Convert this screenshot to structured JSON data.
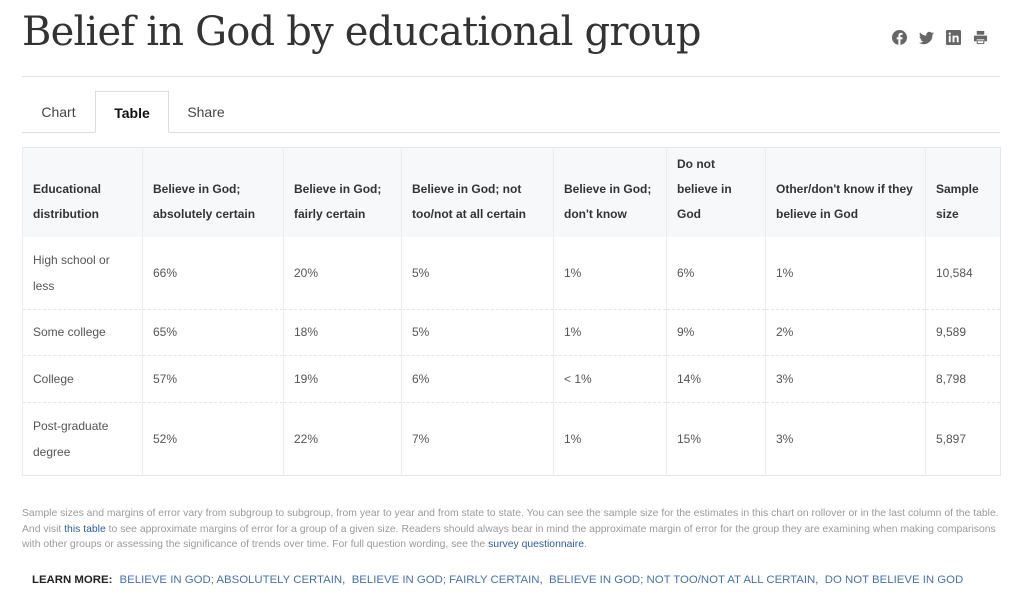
{
  "header": {
    "title": "Belief in God by educational group",
    "share_icons": [
      "facebook-icon",
      "twitter-icon",
      "linkedin-icon",
      "print-icon"
    ]
  },
  "tabs": [
    {
      "label": "Chart",
      "active": false
    },
    {
      "label": "Table",
      "active": true
    },
    {
      "label": "Share",
      "active": false
    }
  ],
  "table": {
    "columns": [
      "Educational distribution",
      "Believe in God; absolutely certain",
      "Believe in God; fairly certain",
      "Believe in God; not too/not at all certain",
      "Believe in God; don't know",
      "Do not believe in God",
      "Other/don't know if they believe in God",
      "Sample size"
    ],
    "rows": [
      [
        "High school or less",
        "66%",
        "20%",
        "5%",
        "1%",
        "6%",
        "1%",
        "10,584"
      ],
      [
        "Some college",
        "65%",
        "18%",
        "5%",
        "1%",
        "9%",
        "2%",
        "9,589"
      ],
      [
        "College",
        "57%",
        "19%",
        "6%",
        "< 1%",
        "14%",
        "3%",
        "8,798"
      ],
      [
        "Post-graduate degree",
        "52%",
        "22%",
        "7%",
        "1%",
        "15%",
        "3%",
        "5,897"
      ]
    ]
  },
  "note": {
    "text_1": "Sample sizes and margins of error vary from subgroup to subgroup, from year to year and from state to state. You can see the sample size for the estimates in this chart on rollover or in the last column of the table. And visit ",
    "link_1": "this table",
    "text_2": " to see approximate margins of error for a group of a given size. Readers should always bear in mind the approximate margin of error for the group they are examining when making comparisons with other groups or assessing the significance of trends over time. For full question wording, see the ",
    "link_2": "survey questionnaire",
    "text_3": "."
  },
  "learn_more": {
    "label": "LEARN MORE:",
    "links": [
      "BELIEVE IN GOD; ABSOLUTELY CERTAIN",
      "BELIEVE IN GOD; FAIRLY CERTAIN",
      "BELIEVE IN GOD; NOT TOO/NOT AT ALL CERTAIN",
      "DO NOT BELIEVE IN GOD"
    ],
    "separator": ","
  },
  "colors": {
    "link": "#2f5d9b",
    "header_bg": "#f7f8fa",
    "border": "#e6e6e6",
    "note_text": "#9a9a9a"
  }
}
